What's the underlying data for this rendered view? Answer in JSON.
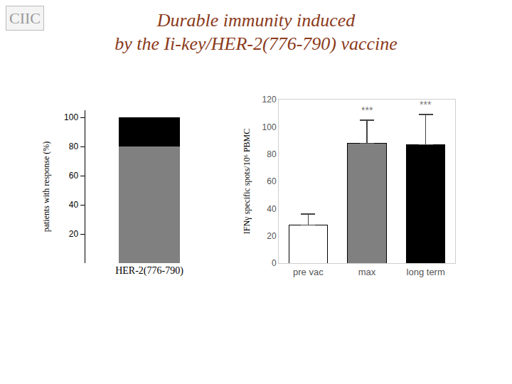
{
  "title": [
    "Durable immunity induced",
    "by the Ii-key/HER-2(776-790) vaccine"
  ],
  "logo": "CIIC",
  "chart_data": [
    {
      "type": "bar",
      "stacked": true,
      "categories": [
        "HER-2(776-790)"
      ],
      "series": [
        {
          "color": "#808080",
          "values": [
            80
          ]
        },
        {
          "color": "#000000",
          "values": [
            20
          ]
        }
      ],
      "ylabel": "patients with response (%)",
      "ylim": [
        0,
        105
      ],
      "yticks": [
        20,
        40,
        60,
        80,
        100
      ],
      "grid": false
    },
    {
      "type": "bar",
      "categories": [
        "pre vac",
        "max",
        "long term"
      ],
      "values": [
        28,
        88,
        87
      ],
      "errors": [
        8,
        17,
        22
      ],
      "colors": [
        "#ffffff",
        "#808080",
        "#000000"
      ],
      "ylabel": "IFNγ specific spots/10⁶ PBMC",
      "ylim": [
        0,
        120
      ],
      "yticks": [
        0,
        20,
        40,
        60,
        80,
        100,
        120
      ],
      "grid": false,
      "annotations": [
        {
          "category": "max",
          "text": "***"
        },
        {
          "category": "long term",
          "text": "***"
        }
      ]
    }
  ]
}
